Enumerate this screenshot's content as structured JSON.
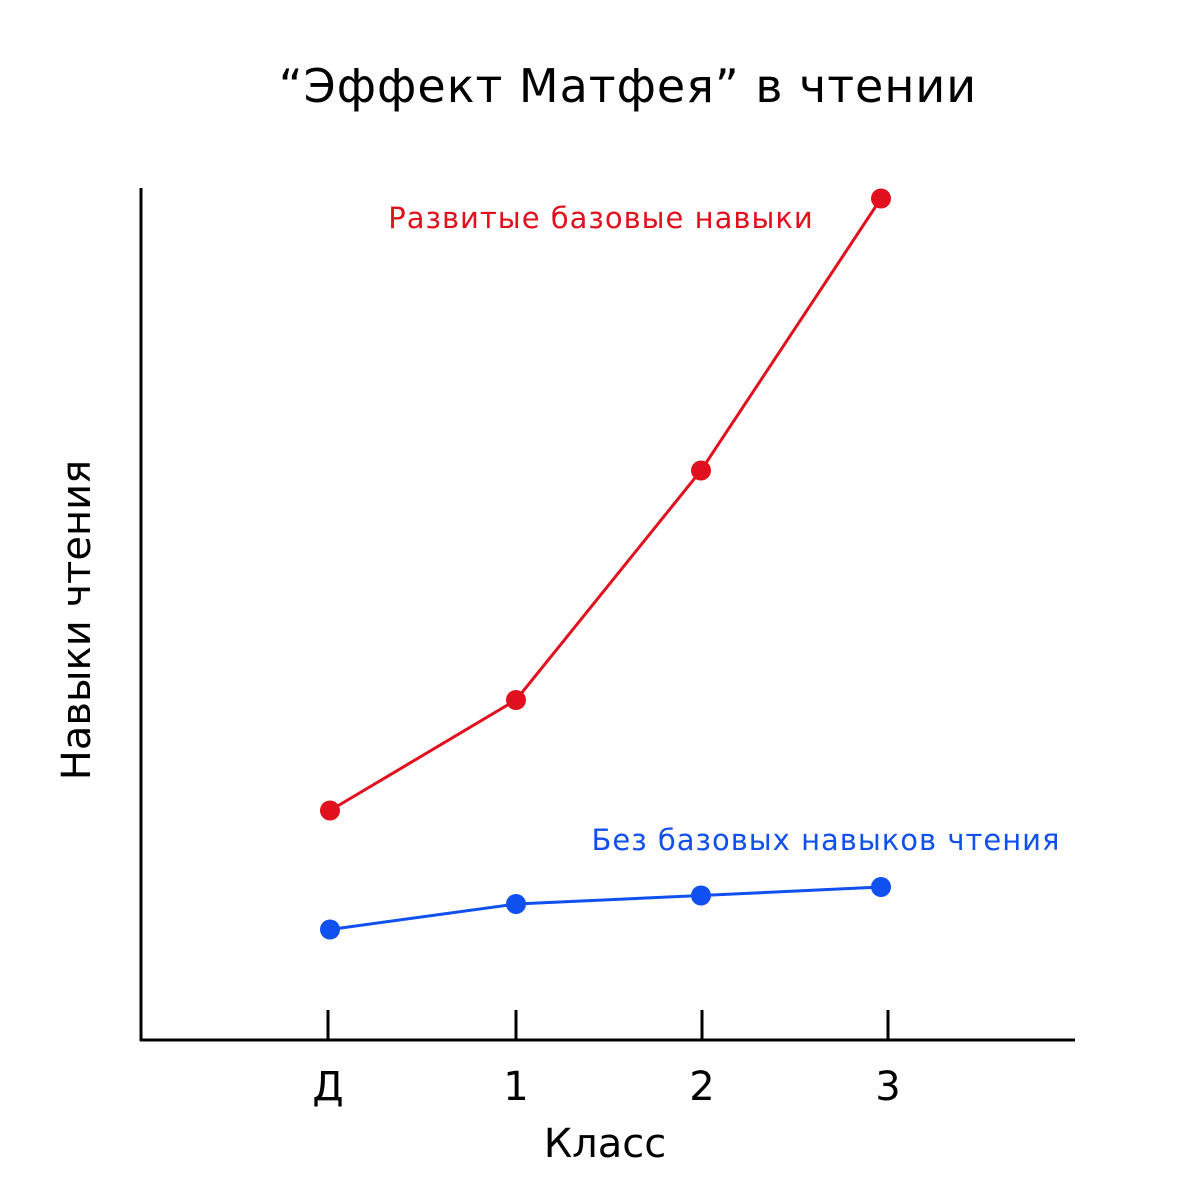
{
  "chart_data": {
    "type": "line",
    "title": "“Эффект Матфея” в чтении",
    "xlabel": "Класс",
    "ylabel": "Навыки чтения",
    "categories": [
      "Д",
      "1",
      "2",
      "3"
    ],
    "ylim": [
      0,
      100
    ],
    "grid": false,
    "legend": "inline",
    "series": [
      {
        "name": "Развитые базовые навыки",
        "color": "#e0101e",
        "values": [
          27,
          40,
          67,
          99
        ]
      },
      {
        "name": "Без базовых навыков чтения",
        "color": "#1050f0",
        "values": [
          13,
          16,
          17,
          18
        ]
      }
    ]
  }
}
